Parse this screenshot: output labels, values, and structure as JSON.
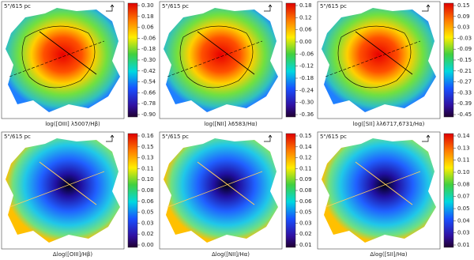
{
  "panels": [
    {
      "scale": "5\"/615 pc",
      "caption": "log([OIII] λ5007/Hβ)",
      "colorbar_ticks": [
        "0.30",
        "0.18",
        "0.06",
        "-0.06",
        "-0.18",
        "-0.30",
        "-0.42",
        "-0.54",
        "-0.66",
        "-0.78",
        "-0.90"
      ]
    },
    {
      "scale": "5\"/615 pc",
      "caption": "log([NII] λ6583/Hα)",
      "colorbar_ticks": [
        "0.18",
        "0.12",
        "0.06",
        "0.00",
        "-0.06",
        "-0.12",
        "-0.18",
        "-0.24",
        "-0.30",
        "-0.36"
      ]
    },
    {
      "scale": "5\"/615 pc",
      "caption": "log([SII] λλ6717,6731/Hα)",
      "colorbar_ticks": [
        "0.15",
        "0.09",
        "0.03",
        "-0.03",
        "-0.09",
        "-0.15",
        "-0.21",
        "-0.27",
        "-0.33",
        "-0.39",
        "-0.45"
      ]
    },
    {
      "scale": "5\"/615 pc",
      "caption": "Δlog([OIII]/Hβ)",
      "colorbar_ticks": [
        "0.16",
        "0.15",
        "0.13",
        "0.11",
        "0.10",
        "0.08",
        "0.06",
        "0.05",
        "0.03",
        "0.02",
        "0.00"
      ]
    },
    {
      "scale": "5\"/615 pc",
      "caption": "Δlog([NII]/Hα)",
      "colorbar_ticks": [
        "0.15",
        "0.14",
        "0.12",
        "0.11",
        "0.09",
        "0.08",
        "0.06",
        "0.05",
        "0.03",
        "0.02",
        "0.01"
      ]
    },
    {
      "scale": "5\"/615 pc",
      "caption": "Δlog([SII]/Hα)",
      "colorbar_ticks": [
        "0.14",
        "0.13",
        "0.11",
        "0.10",
        "0.08",
        "0.07",
        "0.05",
        "0.04",
        "0.03",
        "0.01"
      ]
    }
  ]
}
